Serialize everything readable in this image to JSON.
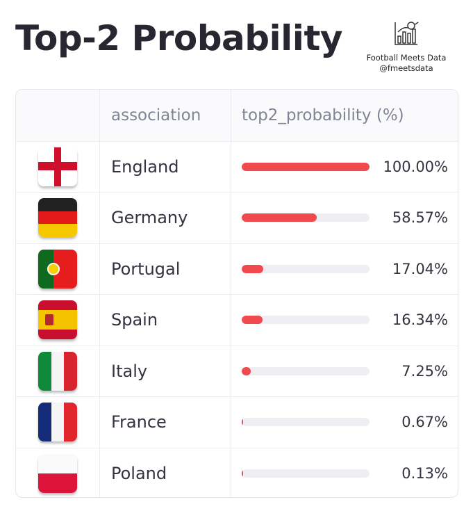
{
  "title": "Top-2 Probability",
  "brand": {
    "name": "Football Meets Data",
    "handle": "@fmeetsdata",
    "icon": "chart-football-logo"
  },
  "chart_data": {
    "type": "table",
    "columns": [
      "",
      "association",
      "top2_probability (%)"
    ],
    "rows": [
      {
        "flag": "england-flag",
        "association": "England",
        "value": 100.0,
        "label": "100.00%"
      },
      {
        "flag": "germany-flag",
        "association": "Germany",
        "value": 58.57,
        "label": "58.57%"
      },
      {
        "flag": "portugal-flag",
        "association": "Portugal",
        "value": 17.04,
        "label": "17.04%"
      },
      {
        "flag": "spain-flag",
        "association": "Spain",
        "value": 16.34,
        "label": "16.34%"
      },
      {
        "flag": "italy-flag",
        "association": "Italy",
        "value": 7.25,
        "label": "7.25%"
      },
      {
        "flag": "france-flag",
        "association": "France",
        "value": 0.67,
        "label": "0.67%"
      },
      {
        "flag": "poland-flag",
        "association": "Poland",
        "value": 0.13,
        "label": "0.13%"
      }
    ],
    "value_range": [
      0,
      100
    ],
    "bar_color": "#f04a4f",
    "track_color": "#efeff3"
  }
}
